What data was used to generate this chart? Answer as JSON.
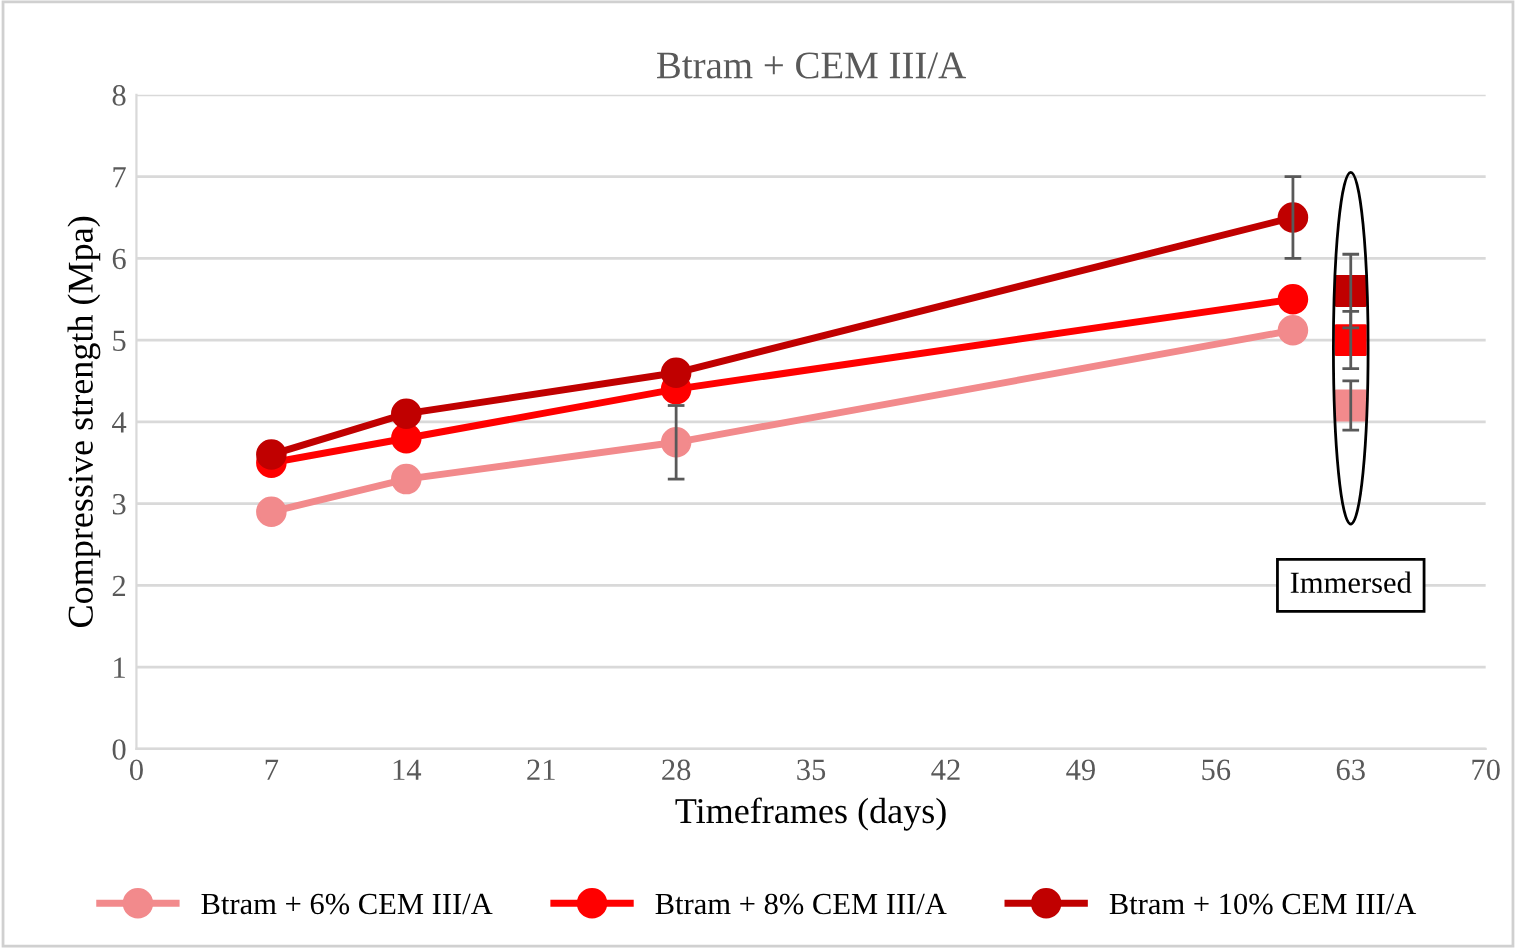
{
  "chart_data": {
    "type": "line",
    "title": "Btram + CEM III/A",
    "xlabel": "Timeframes (days)",
    "ylabel": "Compressive strength (Mpa)",
    "xlim": [
      0,
      70
    ],
    "xticks": [
      0,
      7,
      14,
      21,
      28,
      35,
      42,
      49,
      56,
      63,
      70
    ],
    "ylim": [
      0,
      8
    ],
    "yticks": [
      0,
      1,
      2,
      3,
      4,
      5,
      6,
      7,
      8
    ],
    "grid": "y",
    "legend": "bottom",
    "marker": "circle",
    "series": [
      {
        "name": "Btram + 6% CEM III/A",
        "color": "#f28a8c",
        "x": [
          7,
          14,
          28,
          60
        ],
        "values": [
          2.9,
          3.3,
          3.75,
          5.12
        ],
        "errors": [
          null,
          null,
          0.45,
          null
        ]
      },
      {
        "name": "Btram + 8% CEM III/A",
        "color": "#ff0000",
        "x": [
          7,
          14,
          28,
          60
        ],
        "values": [
          3.5,
          3.8,
          4.4,
          5.5
        ],
        "errors": [
          null,
          null,
          null,
          null
        ]
      },
      {
        "name": "Btram + 10% CEM III/A",
        "color": "#c00000",
        "x": [
          7,
          14,
          28,
          60
        ],
        "values": [
          3.6,
          4.1,
          4.6,
          6.5
        ],
        "errors": [
          null,
          null,
          null,
          0.5
        ]
      },
      {
        "type": "scatter",
        "marker": "square",
        "color": "#f28a8c",
        "x": [
          63
        ],
        "values": [
          4.2
        ],
        "errors": [
          0.3
        ]
      },
      {
        "type": "scatter",
        "marker": "square",
        "color": "#ff0000",
        "x": [
          63
        ],
        "values": [
          5.0
        ],
        "errors": [
          0.35
        ]
      },
      {
        "type": "scatter",
        "marker": "square",
        "color": "#c00000",
        "x": [
          63
        ],
        "values": [
          5.6
        ],
        "errors": [
          0.45
        ]
      }
    ],
    "annotations": [
      "Immersed"
    ]
  }
}
